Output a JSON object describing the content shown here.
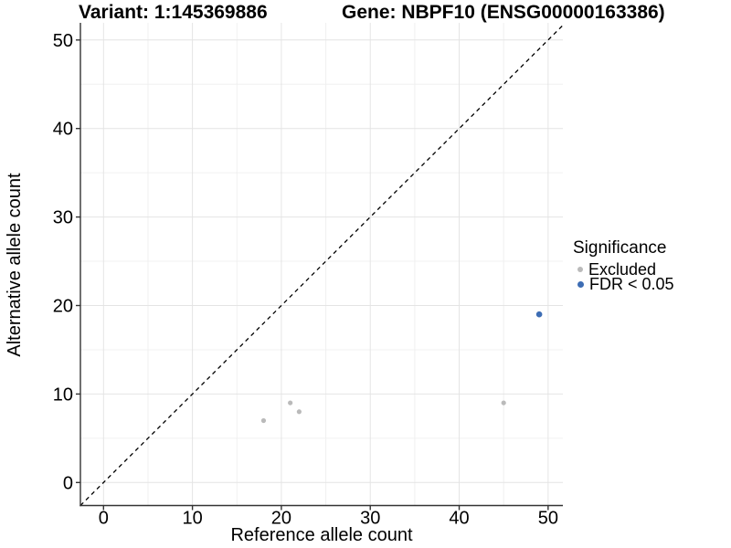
{
  "chart_data": {
    "type": "scatter",
    "title_left": "Variant: 1:145369886",
    "title_right": "Gene: NBPF10 (ENSG00000163386)",
    "xlabel": "Reference allele count",
    "ylabel": "Alternative allele count",
    "xlim": [
      -2.6,
      51.66
    ],
    "ylim": [
      -2.6,
      51.94
    ],
    "xticks": [
      0,
      10,
      20,
      30,
      40,
      50
    ],
    "yticks": [
      0,
      10,
      20,
      30,
      40,
      50
    ],
    "minor_gridlines": [
      5,
      15,
      25,
      35,
      45
    ],
    "grid": "on",
    "identity_line": {
      "slope": 1,
      "intercept": 0,
      "style": "dashed",
      "color": "#000000"
    },
    "series": [
      {
        "name": "Excluded",
        "color": "#bababa",
        "size": 2.6,
        "points": [
          [
            18,
            7
          ],
          [
            21,
            9
          ],
          [
            22,
            8
          ],
          [
            45,
            9
          ]
        ]
      },
      {
        "name": "FDR < 0.05",
        "color": "#3d6db4",
        "size": 3.3,
        "points": [
          [
            49,
            19
          ]
        ]
      }
    ],
    "legend": {
      "title": "Significance",
      "position": "right"
    },
    "style": {
      "axis_line_color": "#333333",
      "major_grid_color": "#e4e4e4",
      "minor_grid_color": "#f0f0f0"
    }
  }
}
